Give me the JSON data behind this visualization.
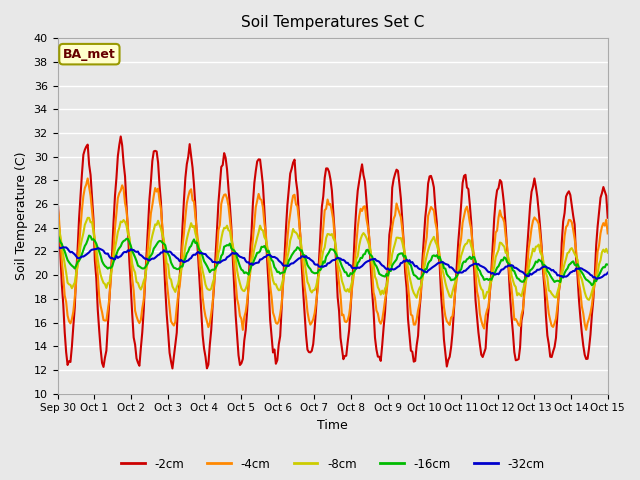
{
  "title": "Soil Temperatures Set C",
  "xlabel": "Time",
  "ylabel": "Soil Temperature (C)",
  "ylim": [
    10,
    40
  ],
  "background_color": "#e8e8e8",
  "annotation_text": "BA_met",
  "annotation_bg": "#ffffcc",
  "annotation_border": "#999900",
  "annotation_text_color": "#660000",
  "tick_labels": [
    "Sep 30",
    "Oct 1",
    "Oct 2",
    "Oct 3",
    "Oct 4",
    "Oct 5",
    "Oct 6",
    "Oct 7",
    "Oct 8",
    "Oct 9",
    "Oct 10",
    "Oct 11",
    "Oct 12",
    "Oct 13",
    "Oct 14",
    "Oct 15"
  ],
  "n_days": 16,
  "series": {
    "neg2cm": {
      "color": "#cc0000",
      "label": "-2cm",
      "linewidth": 1.5
    },
    "neg4cm": {
      "color": "#ff8800",
      "label": "-4cm",
      "linewidth": 1.5
    },
    "neg8cm": {
      "color": "#cccc00",
      "label": "-8cm",
      "linewidth": 1.5
    },
    "neg16cm": {
      "color": "#00bb00",
      "label": "-16cm",
      "linewidth": 1.5
    },
    "neg32cm": {
      "color": "#0000cc",
      "label": "-32cm",
      "linewidth": 1.5
    }
  }
}
